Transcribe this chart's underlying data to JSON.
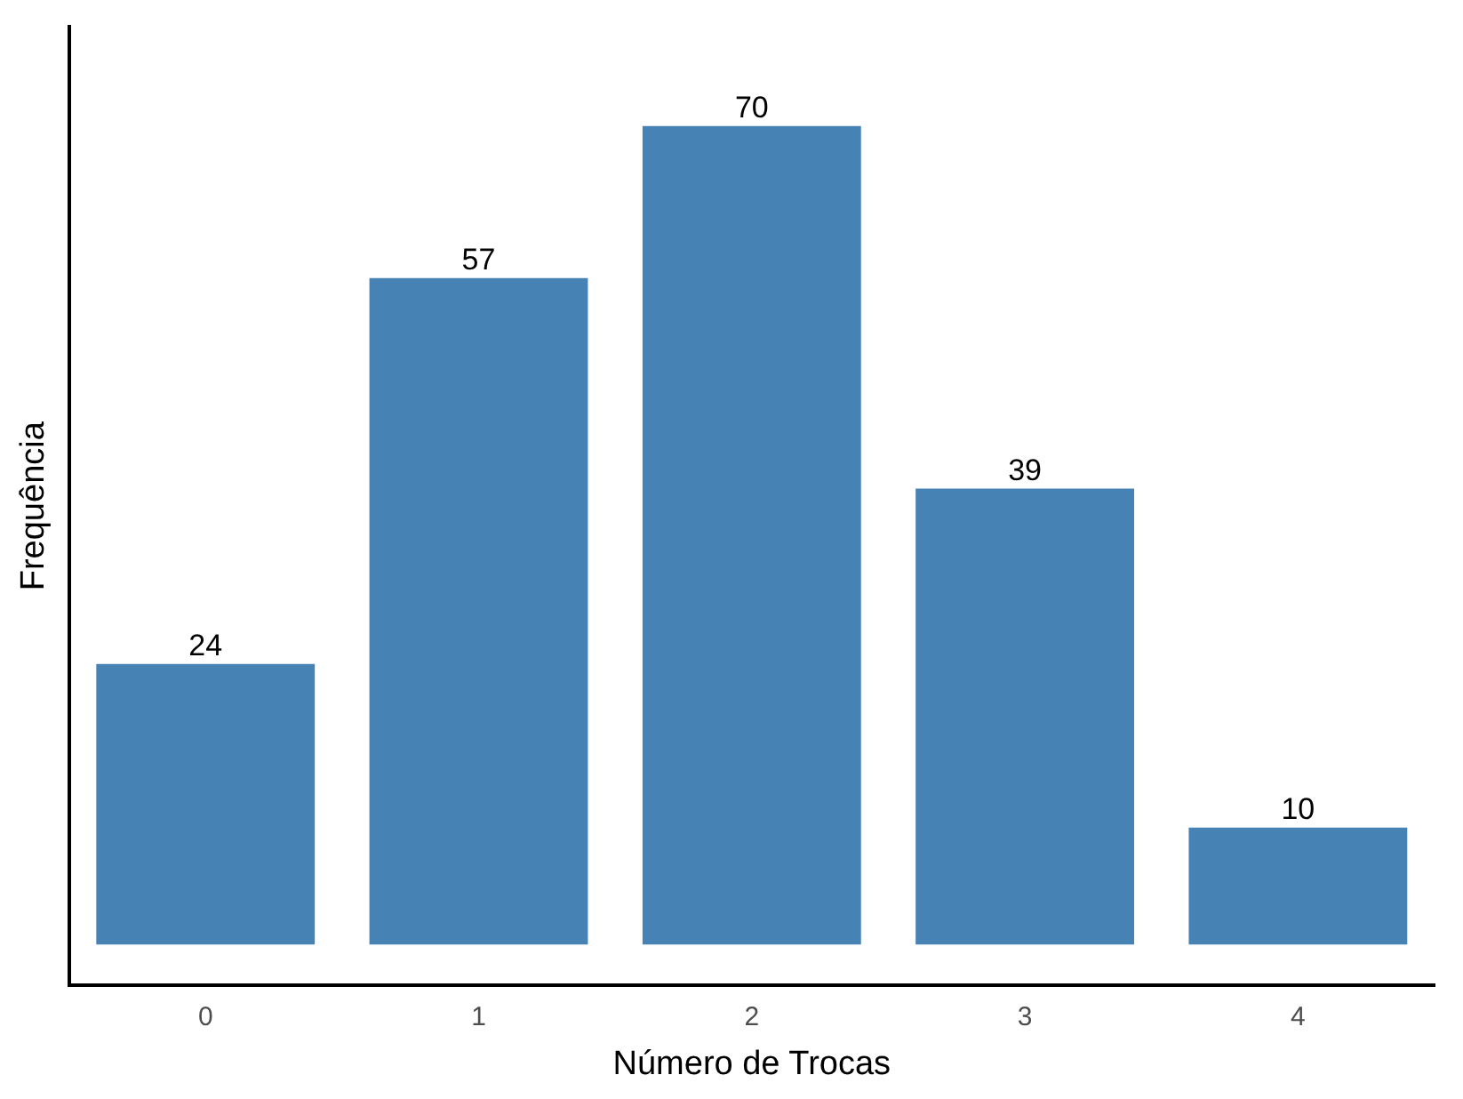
{
  "chart_data": {
    "type": "bar",
    "xlabel": "Número de Trocas",
    "ylabel": "Frequência",
    "categories": [
      "0",
      "1",
      "2",
      "3",
      "4"
    ],
    "values": [
      24,
      57,
      70,
      39,
      10
    ],
    "color": "#4682b4",
    "ylim": [
      -3.5,
      78.5
    ],
    "tick_labels": "x",
    "data_labels": true,
    "grid": false,
    "legend": false
  }
}
